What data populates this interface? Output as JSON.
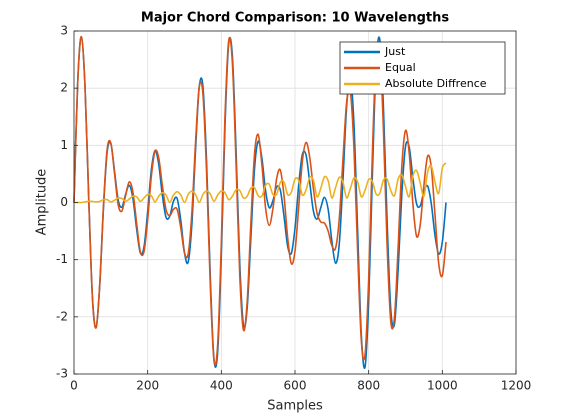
{
  "chart_data": {
    "type": "line",
    "title": "Major Chord Comparison: 10 Wavelengths",
    "xlabel": "Samples",
    "ylabel": "Amplitude",
    "x": [
      0,
      10,
      20,
      30,
      40,
      50,
      60,
      70,
      80,
      90,
      100,
      110,
      120,
      130,
      140,
      150,
      160,
      170,
      180,
      190,
      200,
      210,
      220,
      230,
      240,
      250,
      260,
      270,
      280,
      290,
      300,
      310,
      320,
      330,
      340,
      350,
      360,
      370,
      380,
      390,
      400,
      410,
      420,
      430,
      440,
      450,
      460,
      470,
      480,
      490,
      500,
      510,
      520,
      530,
      540,
      550,
      560,
      570,
      580,
      590,
      600,
      610,
      620,
      630,
      640,
      650,
      660,
      670,
      680,
      690,
      700,
      710,
      720,
      730,
      740,
      750,
      760,
      770,
      780,
      790,
      800,
      810,
      820,
      830,
      840,
      850,
      860,
      870,
      880,
      890,
      900,
      910,
      920,
      930,
      940,
      950,
      960,
      970,
      980,
      990,
      1000,
      1010
    ],
    "series": [
      {
        "name": "Just",
        "color": "#0072bd",
        "values": [
          0,
          2.09,
          2.9,
          2.02,
          0.08,
          -1.65,
          -2.19,
          -1.44,
          -0.1,
          0.88,
          1.03,
          0.55,
          0.04,
          -0.08,
          0.14,
          0.3,
          0.07,
          -0.46,
          -0.88,
          -0.78,
          -0.16,
          0.57,
          0.91,
          0.67,
          0.12,
          -0.26,
          -0.24,
          0.02,
          0.07,
          -0.32,
          -0.88,
          -1.04,
          -0.38,
          0.92,
          2.02,
          2.03,
          0.7,
          -1.3,
          -2.74,
          -2.62,
          -0.92,
          1.35,
          2.78,
          2.56,
          0.9,
          -1.06,
          -2.14,
          -1.86,
          -0.64,
          0.58,
          1.07,
          0.78,
          0.21,
          -0.09,
          0.03,
          0.27,
          0.22,
          -0.23,
          -0.76,
          -0.89,
          -0.45,
          0.3,
          0.84,
          0.83,
          0.35,
          -0.15,
          -0.29,
          -0.09,
          0.09,
          -0.12,
          -0.67,
          -1.06,
          -0.74,
          0.37,
          1.66,
          2.19,
          1.38,
          -0.49,
          -2.31,
          -2.88,
          -1.74,
          0.47,
          2.38,
          2.86,
          1.68,
          -0.32,
          -1.87,
          -2.13,
          -1.18,
          0.15,
          0.98,
          0.97,
          0.43,
          -0.02,
          -0.06,
          0.19,
          0.29,
          -0.02,
          -0.57,
          -0.9,
          -0.69,
          0
        ]
      },
      {
        "name": "Equal",
        "color": "#d95319",
        "values": [
          0,
          2.09,
          2.9,
          2.01,
          0.06,
          -1.67,
          -2.19,
          -1.41,
          -0.06,
          0.93,
          1.04,
          0.51,
          -0.04,
          -0.15,
          0.12,
          0.36,
          0.18,
          -0.36,
          -0.86,
          -0.86,
          -0.3,
          0.46,
          0.9,
          0.78,
          0.29,
          -0.13,
          -0.23,
          -0.12,
          -0.12,
          -0.45,
          -0.88,
          -0.9,
          -0.18,
          1.05,
          2.02,
          1.9,
          0.51,
          -1.45,
          -2.76,
          -2.49,
          -0.71,
          1.52,
          2.83,
          2.44,
          0.68,
          -1.27,
          -2.23,
          -1.75,
          -0.39,
          0.84,
          1.19,
          0.67,
          -0.09,
          -0.4,
          -0.11,
          0.41,
          0.57,
          0.13,
          -0.61,
          -1.07,
          -0.85,
          -0.08,
          0.72,
          1.05,
          0.79,
          0.24,
          -0.19,
          -0.34,
          -0.36,
          -0.5,
          -0.75,
          -0.8,
          -0.3,
          0.73,
          1.74,
          1.95,
          0.96,
          -0.85,
          -2.41,
          -2.67,
          -1.34,
          0.84,
          2.53,
          2.7,
          1.29,
          -0.74,
          -2.08,
          -2.01,
          -0.78,
          0.63,
          1.26,
          0.87,
          -0.02,
          -0.59,
          -0.39,
          0.3,
          0.81,
          0.62,
          -0.21,
          -1.06,
          -1.28,
          -0.69
        ]
      },
      {
        "name": "Absolute Diffrence",
        "color": "#edb120",
        "values": [
          0,
          0,
          0,
          0.01,
          0.02,
          0.02,
          0.01,
          0.02,
          0.05,
          0.05,
          0.01,
          0.04,
          0.08,
          0.07,
          0.02,
          0.06,
          0.11,
          0.1,
          0.02,
          0.08,
          0.14,
          0.12,
          0.01,
          0.11,
          0.17,
          0.13,
          0,
          0.13,
          0.19,
          0.13,
          0,
          0.14,
          0.2,
          0.14,
          0,
          0.14,
          0.2,
          0.15,
          0.02,
          0.13,
          0.2,
          0.17,
          0.05,
          0.11,
          0.22,
          0.21,
          0.08,
          0.11,
          0.25,
          0.26,
          0.12,
          0.11,
          0.3,
          0.32,
          0.14,
          0.14,
          0.35,
          0.36,
          0.14,
          0.18,
          0.41,
          0.39,
          0.13,
          0.22,
          0.44,
          0.39,
          0.1,
          0.25,
          0.45,
          0.38,
          0.08,
          0.26,
          0.44,
          0.36,
          0.08,
          0.24,
          0.43,
          0.36,
          0.1,
          0.21,
          0.4,
          0.37,
          0.15,
          0.16,
          0.39,
          0.41,
          0.21,
          0.12,
          0.41,
          0.48,
          0.28,
          0.1,
          0.46,
          0.56,
          0.34,
          0.11,
          0.53,
          0.64,
          0.36,
          0.16,
          0.6,
          0.69
        ]
      }
    ],
    "xlim": [
      0,
      1200
    ],
    "xticks": [
      0,
      200,
      400,
      600,
      800,
      1000,
      1200
    ],
    "ylim": [
      -3,
      3
    ],
    "yticks": [
      -3,
      -2,
      -1,
      0,
      1,
      2,
      3
    ],
    "grid": true,
    "legend": "northeast"
  }
}
